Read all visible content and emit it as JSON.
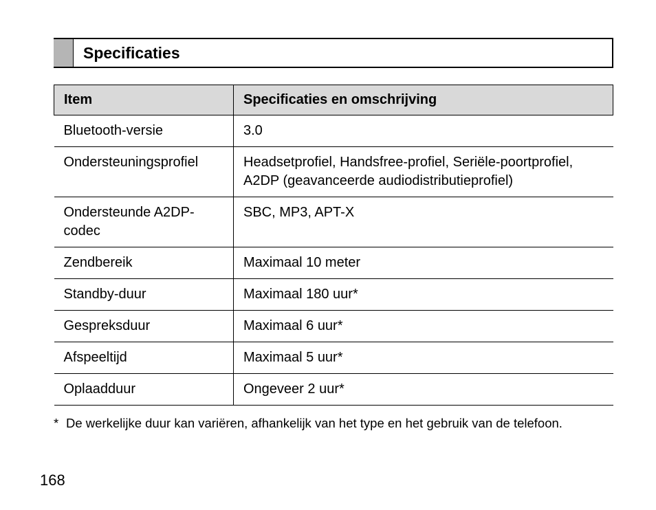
{
  "section_title": "Specificaties",
  "table": {
    "head_item": "Item",
    "head_spec": "Specificaties en omschrijving",
    "rows": [
      {
        "item": "Bluetooth-versie",
        "spec": "3.0"
      },
      {
        "item": "Ondersteuningsprofiel",
        "spec": "Headsetprofiel, Handsfree-profiel, Seriële-poortprofiel, A2DP (geavanceerde audiodistributieprofiel)"
      },
      {
        "item": "Ondersteunde A2DP-codec",
        "spec": "SBC, MP3, APT-X"
      },
      {
        "item": "Zendbereik",
        "spec": "Maximaal 10 meter"
      },
      {
        "item": "Standby-duur",
        "spec": "Maximaal 180 uur*"
      },
      {
        "item": "Gespreksduur",
        "spec": "Maximaal 6 uur*"
      },
      {
        "item": "Afspeeltijd",
        "spec": "Maximaal 5 uur*"
      },
      {
        "item": "Oplaadduur",
        "spec": "Ongeveer 2 uur*"
      }
    ]
  },
  "footnote_marker": "*",
  "footnote_text": "De werkelijke duur kan variëren, afhankelijk van het type en het gebruik van de telefoon.",
  "page_number": "168"
}
